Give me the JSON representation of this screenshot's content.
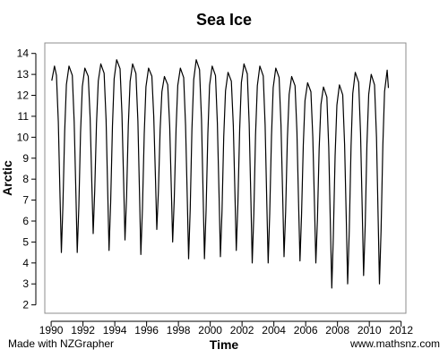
{
  "credits": {
    "left": "Made with NZGrapher",
    "right": "www.mathsnz.com"
  },
  "colors": {
    "line": "#000000",
    "axis": "#000000",
    "frame": "#8c8c8c"
  },
  "chart_data": {
    "type": "line",
    "title": "Sea Ice",
    "xlabel": "Time",
    "ylabel": "Arctic",
    "xlim": [
      1989.6,
      2012.3
    ],
    "ylim": [
      1.6,
      14.5
    ],
    "xticks": [
      1990,
      1992,
      1994,
      1996,
      1998,
      2000,
      2002,
      2004,
      2006,
      2008,
      2010,
      2012
    ],
    "yticks": [
      2,
      3,
      4,
      5,
      6,
      7,
      8,
      9,
      10,
      11,
      12,
      13,
      14
    ],
    "grid": false,
    "legend": "none",
    "start_year": 1990,
    "seasonal_minima": [
      4.5,
      4.5,
      5.4,
      4.6,
      5.1,
      4.4,
      5.6,
      5.0,
      4.2,
      4.2,
      4.3,
      4.6,
      4.0,
      4.0,
      4.3,
      4.1,
      4.0,
      2.8,
      3.0,
      3.4,
      3.0
    ],
    "seasonal_maxima": [
      13.4,
      13.3,
      13.5,
      13.7,
      13.5,
      13.3,
      12.9,
      13.3,
      13.7,
      13.4,
      13.1,
      13.5,
      13.4,
      13.3,
      12.9,
      12.6,
      12.4,
      12.5,
      13.1,
      13.0,
      13.2
    ],
    "series": [
      {
        "values": [
          {
            "x": 1990.04,
            "y": 12.7
          },
          {
            "x": 1990.21,
            "y": 13.4
          }
        ],
        "end": {
          "x": 2011.2,
          "y": 12.35
        }
      }
    ]
  }
}
